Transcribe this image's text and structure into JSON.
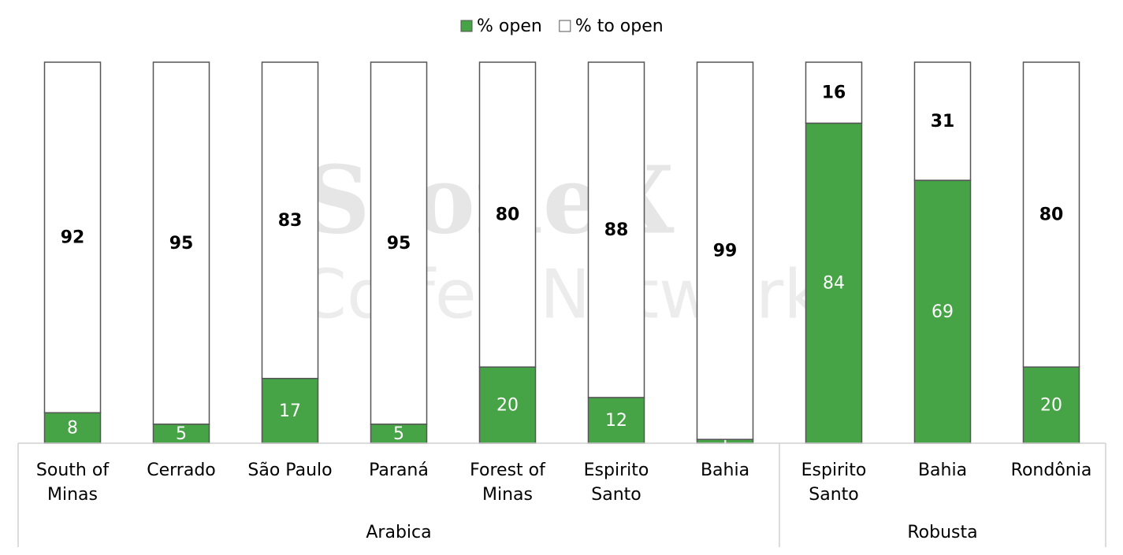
{
  "chart_data": {
    "type": "stacked_bar",
    "watermark": [
      "StoneX",
      "Coffee Network"
    ],
    "groups": [
      {
        "name": "Arabica",
        "categories": [
          "South of Minas",
          "Cerrado",
          "São Paulo",
          "Paraná",
          "Forest of Minas",
          "Espirito Santo",
          "Bahia"
        ]
      },
      {
        "name": "Robusta",
        "categories": [
          "Espirito Santo",
          "Bahia",
          "Rondônia"
        ]
      }
    ],
    "series": [
      {
        "name": "% open",
        "color": "#46a346",
        "label_color": "#ffffff",
        "values": [
          8,
          5,
          17,
          5,
          20,
          12,
          1,
          84,
          69,
          20
        ]
      },
      {
        "name": "% to open",
        "color": "#ffffff",
        "label_color": "#000000",
        "values": [
          92,
          95,
          83,
          95,
          80,
          88,
          99,
          16,
          31,
          80
        ]
      }
    ],
    "ylim": [
      0,
      100
    ],
    "legend": "top"
  }
}
